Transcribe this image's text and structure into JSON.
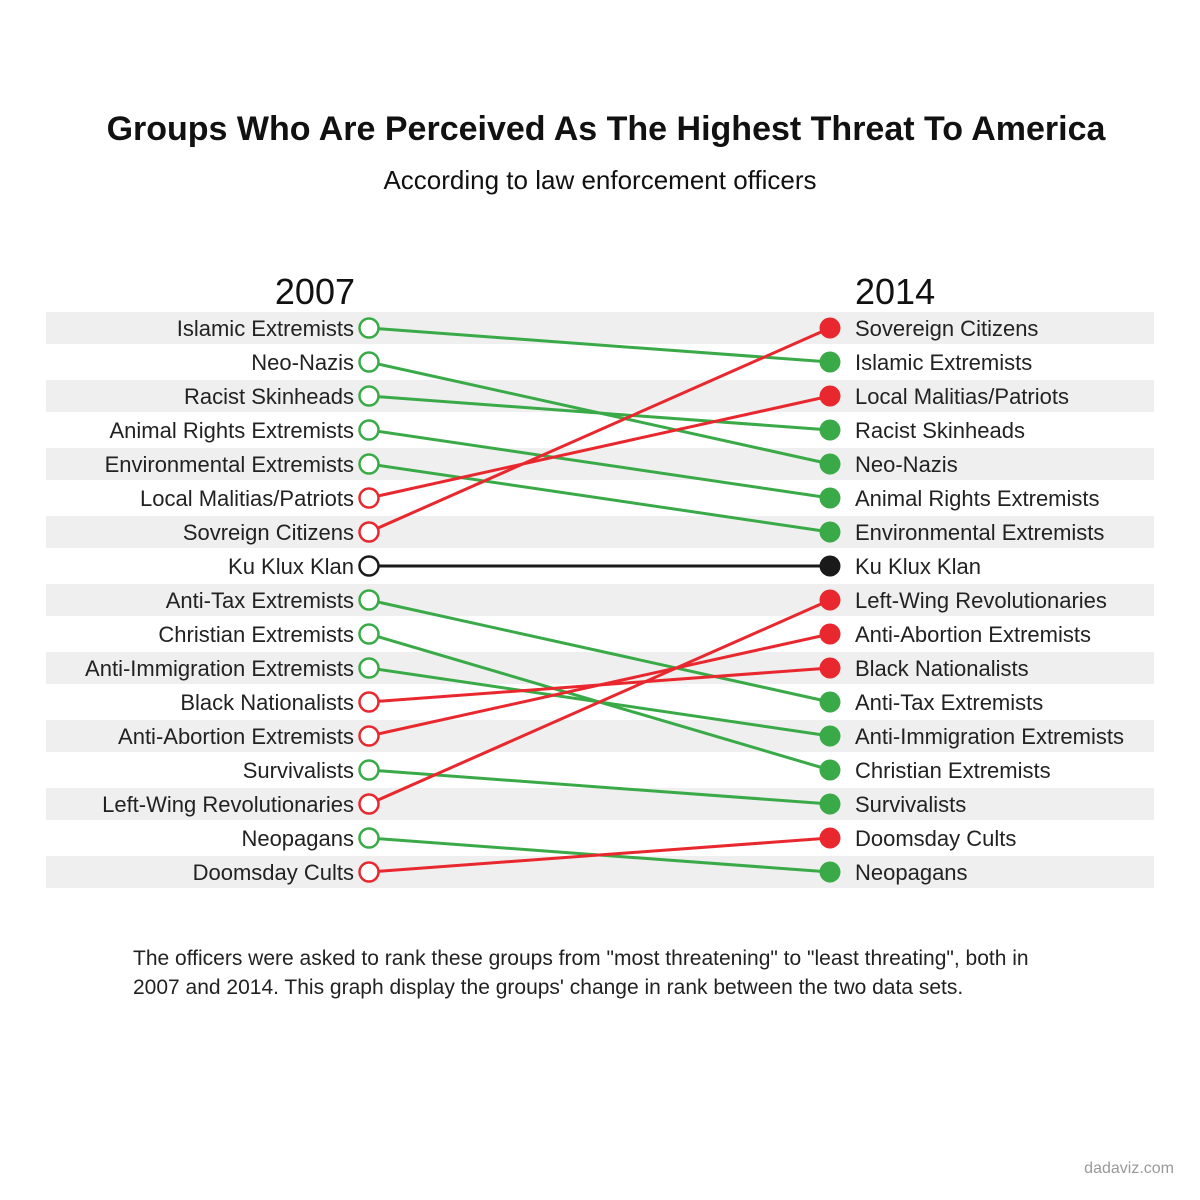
{
  "chart_data": {
    "type": "slope",
    "title": "Groups Who Are Perceived As The Highest Threat To America",
    "subtitle": "According to law enforcement officers",
    "left_year": "2007",
    "right_year": "2014",
    "rank_order": "1 = most threatening (top)",
    "colors": {
      "up": "#e8282e",
      "down": "#3aaa48",
      "same": "#1a1a1a",
      "stripe": "#efefef"
    },
    "groups": [
      {
        "name": "Islamic Extremists",
        "rank_2007": 1,
        "rank_2014": 2
      },
      {
        "name": "Neo-Nazis",
        "rank_2007": 2,
        "rank_2014": 5
      },
      {
        "name": "Racist Skinheads",
        "rank_2007": 3,
        "rank_2014": 4
      },
      {
        "name": "Animal Rights Extremists",
        "rank_2007": 4,
        "rank_2014": 6
      },
      {
        "name": "Environmental Extremists",
        "rank_2007": 5,
        "rank_2014": 7
      },
      {
        "name": "Local Malitias/Patriots",
        "rank_2007": 6,
        "rank_2014": 3
      },
      {
        "name": "Sovreign Citizens",
        "label_2014": "Sovereign Citizens",
        "rank_2007": 7,
        "rank_2014": 1
      },
      {
        "name": "Ku Klux Klan",
        "rank_2007": 8,
        "rank_2014": 8
      },
      {
        "name": "Anti-Tax Extremists",
        "rank_2007": 9,
        "rank_2014": 12
      },
      {
        "name": "Christian Extremists",
        "rank_2007": 10,
        "rank_2014": 14
      },
      {
        "name": "Anti-Immigration Extremists",
        "rank_2007": 11,
        "rank_2014": 13
      },
      {
        "name": "Black Nationalists",
        "rank_2007": 12,
        "rank_2014": 11
      },
      {
        "name": "Anti-Abortion Extremists",
        "rank_2007": 13,
        "rank_2014": 10
      },
      {
        "name": "Survivalists",
        "rank_2007": 14,
        "rank_2014": 15
      },
      {
        "name": "Left-Wing Revolutionaries",
        "rank_2007": 15,
        "rank_2014": 9
      },
      {
        "name": "Neopagans",
        "rank_2007": 16,
        "rank_2014": 17
      },
      {
        "name": "Doomsday Cults",
        "rank_2007": 17,
        "rank_2014": 16
      }
    ]
  },
  "footnote": "The officers were asked to rank these groups from \"most threatening\" to \"least threating\", both in 2007 and 2014. This graph display the groups' change in rank between the two data sets.",
  "credit": "dadaviz.com"
}
